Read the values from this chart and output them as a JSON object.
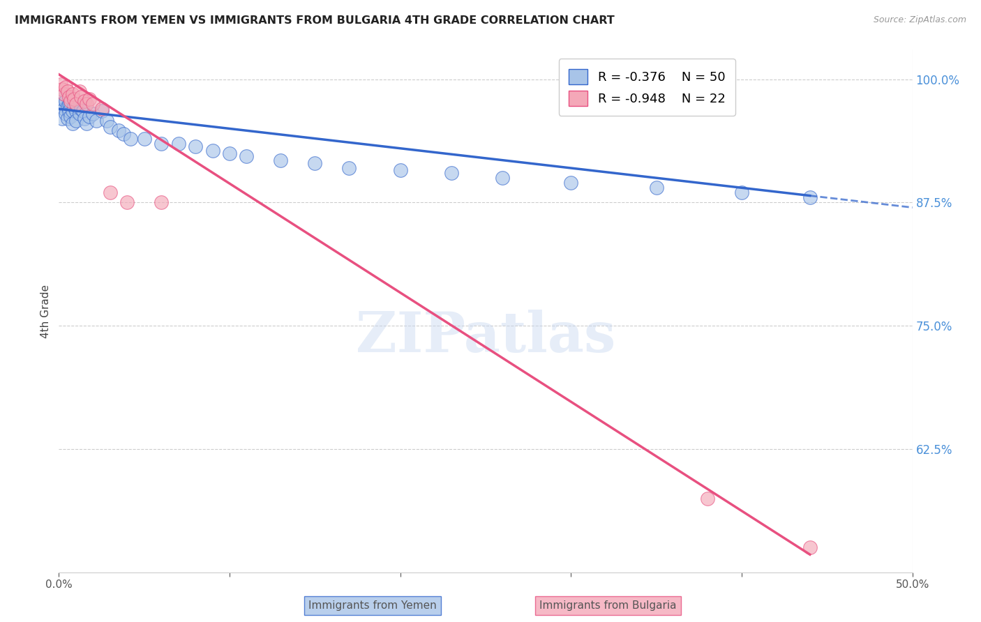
{
  "title": "IMMIGRANTS FROM YEMEN VS IMMIGRANTS FROM BULGARIA 4TH GRADE CORRELATION CHART",
  "source": "Source: ZipAtlas.com",
  "ylabel": "4th Grade",
  "ylabel_ticks": [
    "100.0%",
    "87.5%",
    "75.0%",
    "62.5%"
  ],
  "ylabel_tick_vals": [
    1.0,
    0.875,
    0.75,
    0.625
  ],
  "xlim": [
    0.0,
    0.5
  ],
  "ylim": [
    0.5,
    1.03
  ],
  "legend_r_yemen": "-0.376",
  "legend_n_yemen": "50",
  "legend_r_bulgaria": "-0.948",
  "legend_n_bulgaria": "22",
  "color_yemen": "#a8c4e8",
  "color_bulgaria": "#f4a8b8",
  "line_color_yemen": "#3366cc",
  "line_color_bulgaria": "#e85080",
  "watermark": "ZIPatlas",
  "yemen_x": [
    0.001,
    0.002,
    0.002,
    0.003,
    0.003,
    0.004,
    0.004,
    0.005,
    0.005,
    0.006,
    0.006,
    0.007,
    0.007,
    0.008,
    0.008,
    0.009,
    0.01,
    0.01,
    0.011,
    0.012,
    0.013,
    0.014,
    0.015,
    0.016,
    0.018,
    0.02,
    0.022,
    0.025,
    0.028,
    0.03,
    0.035,
    0.038,
    0.042,
    0.05,
    0.06,
    0.07,
    0.08,
    0.09,
    0.1,
    0.11,
    0.13,
    0.15,
    0.17,
    0.2,
    0.23,
    0.26,
    0.3,
    0.35,
    0.4,
    0.44
  ],
  "yemen_y": [
    0.975,
    0.98,
    0.96,
    0.985,
    0.97,
    0.978,
    0.965,
    0.972,
    0.96,
    0.975,
    0.968,
    0.975,
    0.962,
    0.968,
    0.955,
    0.972,
    0.968,
    0.958,
    0.972,
    0.965,
    0.97,
    0.968,
    0.96,
    0.955,
    0.962,
    0.965,
    0.958,
    0.968,
    0.958,
    0.952,
    0.948,
    0.945,
    0.94,
    0.94,
    0.935,
    0.935,
    0.932,
    0.928,
    0.925,
    0.922,
    0.918,
    0.915,
    0.91,
    0.908,
    0.905,
    0.9,
    0.895,
    0.89,
    0.885,
    0.88
  ],
  "bulgaria_x": [
    0.001,
    0.002,
    0.003,
    0.004,
    0.005,
    0.006,
    0.007,
    0.008,
    0.009,
    0.01,
    0.012,
    0.013,
    0.015,
    0.016,
    0.018,
    0.02,
    0.025,
    0.03,
    0.04,
    0.06,
    0.38,
    0.44
  ],
  "bulgaria_y": [
    0.995,
    0.99,
    0.985,
    0.992,
    0.988,
    0.982,
    0.978,
    0.985,
    0.98,
    0.975,
    0.988,
    0.982,
    0.978,
    0.975,
    0.98,
    0.975,
    0.97,
    0.885,
    0.875,
    0.875,
    0.575,
    0.525
  ],
  "yemen_line_x0": 0.0,
  "yemen_line_y0": 0.97,
  "yemen_line_x1": 0.5,
  "yemen_line_y1": 0.87,
  "yemen_line_solid_end": 0.44,
  "bulgaria_line_x0": 0.0,
  "bulgaria_line_y0": 1.005,
  "bulgaria_line_x1": 0.44,
  "bulgaria_line_y1": 0.518
}
